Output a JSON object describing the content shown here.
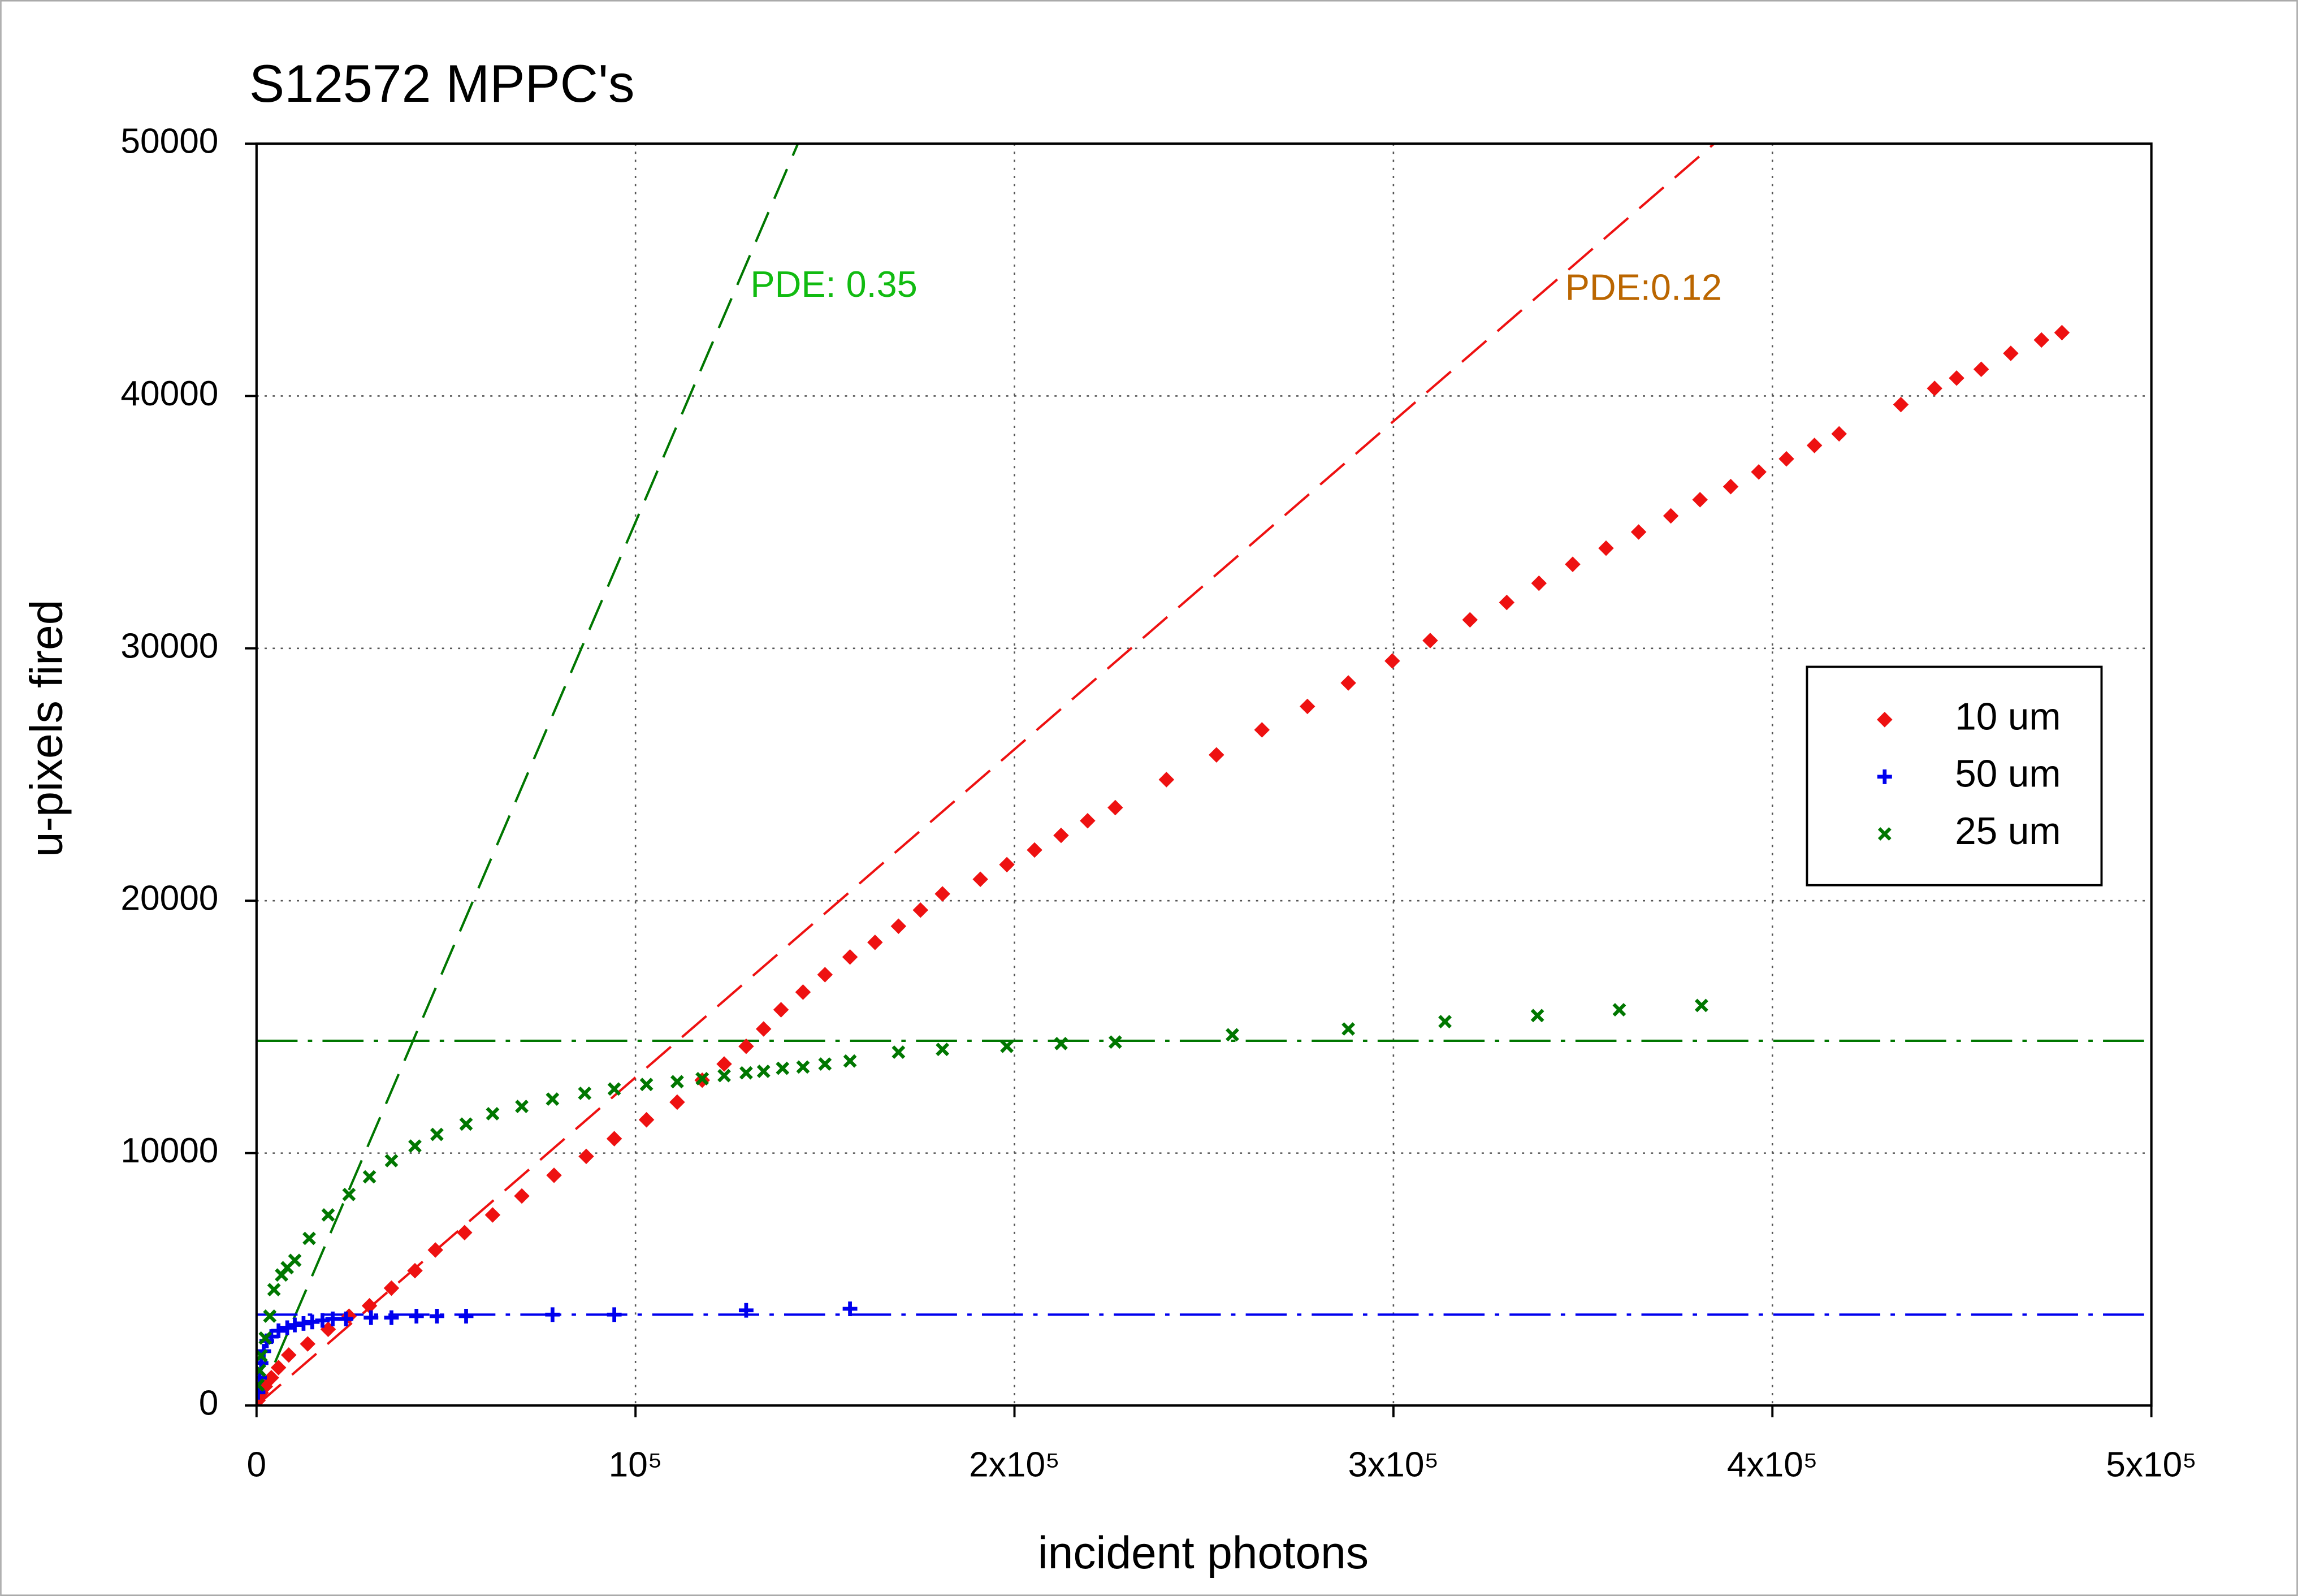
{
  "chart_data": {
    "type": "scatter",
    "title": "S12572 MPPC's",
    "x_label": "incident photons",
    "y_label": "u-pixels fired",
    "xlim": [
      0,
      500000
    ],
    "ylim": [
      0,
      50000
    ],
    "xticks": [
      0,
      {
        "value": 100000,
        "label": "10⁵"
      },
      {
        "value": 200000,
        "label": "2x10⁵"
      },
      {
        "value": 300000,
        "label": "3x10⁵"
      },
      {
        "value": 400000,
        "label": "4x10⁵"
      },
      {
        "value": 500000,
        "label": "5x10⁵"
      }
    ],
    "yticks": [
      0,
      10000,
      20000,
      30000,
      40000,
      50000
    ],
    "grid": true,
    "legend": "right",
    "series": [
      {
        "name": "10 um",
        "color": "#ee1111",
        "marker": "circle",
        "x": [
          400,
          1200,
          2300,
          3900,
          5800,
          8500,
          13500,
          18900,
          24400,
          29800,
          35600,
          41800,
          47200,
          54900,
          62300,
          70000,
          78500,
          87000,
          94400,
          102900,
          111000,
          117600,
          123400,
          129200,
          133800,
          138400,
          144200,
          150000,
          156600,
          163200,
          169400,
          175200,
          181000,
          191000,
          198000,
          205300,
          212300,
          219300,
          226600,
          240100,
          253300,
          265300,
          277300,
          288100,
          299700,
          309700,
          320200,
          329900,
          338400,
          347300,
          356100,
          364700,
          373200,
          380900,
          389000,
          396400,
          403700,
          411100,
          417600,
          433900,
          442800,
          448600,
          455100,
          462900,
          471000,
          476400
        ],
        "values": [
          200,
          500,
          750,
          1100,
          1500,
          2000,
          2440,
          3020,
          3540,
          3950,
          4650,
          5340,
          6160,
          6850,
          7550,
          8300,
          9120,
          9870,
          10570,
          11320,
          12020,
          12890,
          13530,
          14230,
          14920,
          15680,
          16380,
          17070,
          17770,
          18350,
          18990,
          19630,
          20270,
          20850,
          21430,
          22010,
          22590,
          23170,
          23690,
          24800,
          25780,
          26770,
          27700,
          28630,
          29500,
          30310,
          31130,
          31820,
          32580,
          33330,
          33970,
          34610,
          35250,
          35890,
          36410,
          36990,
          37510,
          38040,
          38500,
          39660,
          40300,
          40710,
          41060,
          41690,
          42220,
          42510
        ]
      },
      {
        "name": "50 um",
        "color": "#0000ee",
        "marker": "plus",
        "x": [
          400,
          800,
          1200,
          1900,
          2700,
          3900,
          5800,
          8100,
          10100,
          12400,
          14700,
          17400,
          20100,
          23600,
          30200,
          35600,
          42200,
          47600,
          55300,
          78100,
          94400,
          129200,
          156600
        ],
        "values": [
          520,
          1100,
          1680,
          2150,
          2560,
          2730,
          2960,
          3080,
          3190,
          3250,
          3310,
          3370,
          3430,
          3430,
          3480,
          3480,
          3540,
          3540,
          3540,
          3600,
          3600,
          3770,
          3830
        ]
      },
      {
        "name": "25 um",
        "color": "#007700",
        "marker": "x",
        "x": [
          400,
          800,
          1200,
          2300,
          3500,
          4600,
          6600,
          8100,
          10100,
          13900,
          18900,
          24400,
          29800,
          35600,
          41800,
          47600,
          55300,
          62300,
          70000,
          78100,
          86600,
          94400,
          102900,
          111000,
          117600,
          123400,
          129200,
          133800,
          138800,
          144200,
          150000,
          156600,
          169400,
          181000,
          198000,
          212300,
          226600,
          257500,
          288100,
          313600,
          338000,
          359600,
          381300
        ],
        "values": [
          810,
          1390,
          1970,
          2670,
          3540,
          4590,
          5170,
          5460,
          5750,
          6620,
          7550,
          8360,
          9060,
          9700,
          10280,
          10740,
          11150,
          11560,
          11850,
          12140,
          12370,
          12540,
          12720,
          12830,
          12950,
          13070,
          13180,
          13240,
          13360,
          13410,
          13530,
          13650,
          14000,
          14110,
          14230,
          14340,
          14400,
          14690,
          14920,
          15210,
          15450,
          15680,
          15850
        ]
      }
    ],
    "reference_lines": [
      {
        "slope": 0.35,
        "color": "#007700",
        "style": "dashed"
      },
      {
        "slope": 0.13,
        "color": "#ee1111",
        "style": "dashed"
      },
      {
        "y": 14450,
        "color": "#007700",
        "style": "dashdot"
      },
      {
        "y": 3600,
        "color": "#0000ee",
        "style": "dashdot"
      }
    ],
    "annotations": [
      {
        "text": "PDE: 0.35",
        "color": "#11bb11"
      },
      {
        "text": "PDE:0.12",
        "color": "#bb6600"
      }
    ]
  }
}
